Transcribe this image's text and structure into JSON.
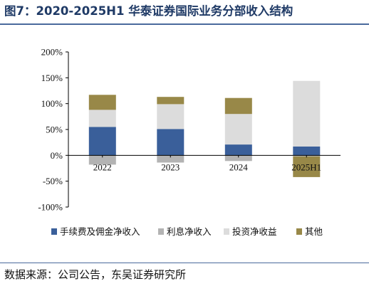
{
  "figure": {
    "title": "图7：2020-2025H1 华泰证券国际业务分部收入结构",
    "source": "数据来源：公司公告，东吴证券研究所"
  },
  "chart_data": {
    "type": "bar",
    "stacked": true,
    "categories": [
      "2022",
      "2023",
      "2024",
      "2025H1"
    ],
    "y_tick_labels": [
      "200%",
      "150%",
      "100%",
      "50%",
      "0%",
      "-50%",
      "-100%"
    ],
    "ylim": [
      -100,
      200
    ],
    "y_unit": "%",
    "legend_position": "bottom",
    "grid": false,
    "series": [
      {
        "name": "手续费及佣金净收入",
        "color": "#3a5f9a",
        "values": [
          55,
          51,
          21,
          17
        ]
      },
      {
        "name": "利息净收入",
        "color": "#b3b3b3",
        "values": [
          -18,
          -14,
          -11,
          -2
        ]
      },
      {
        "name": "投资净收益",
        "color": "#dcdcdc",
        "values": [
          33,
          48,
          59,
          127
        ]
      },
      {
        "name": "其他",
        "color": "#988848",
        "values": [
          29,
          14,
          31,
          -40
        ]
      }
    ]
  }
}
